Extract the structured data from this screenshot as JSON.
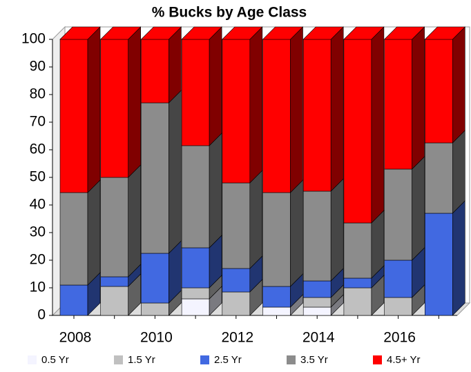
{
  "chart_data": {
    "type": "bar3d_stacked",
    "title": "% Bucks by Age Class",
    "categories": [
      "2008",
      null,
      "2010",
      null,
      "2012",
      null,
      "2014",
      null,
      "2016",
      null
    ],
    "series": [
      {
        "name": "0.5 Yr",
        "color": "#f4f4ff",
        "values": [
          0,
          0,
          0,
          6,
          0,
          3,
          3,
          0,
          0,
          0
        ]
      },
      {
        "name": "1.5 Yr",
        "color": "#c0c0c0",
        "values": [
          0,
          10.5,
          4.5,
          4,
          8.5,
          0,
          3.5,
          10,
          6.5,
          0
        ]
      },
      {
        "name": "2.5 Yr",
        "color": "#4169e1",
        "values": [
          11,
          3.5,
          18,
          14.5,
          8.5,
          7.5,
          6,
          3.5,
          13.5,
          37
        ]
      },
      {
        "name": "3.5 Yr",
        "color": "#8c8c8c",
        "values": [
          33.5,
          36,
          54.5,
          37,
          31,
          34,
          32.5,
          20,
          33,
          25.5
        ]
      },
      {
        "name": "4.5+ Yr",
        "color": "#ff0000",
        "values": [
          55.5,
          50,
          23,
          38.5,
          52,
          55.5,
          55,
          66.5,
          47,
          37.5
        ]
      }
    ],
    "ylim": [
      0,
      100
    ],
    "yticks": [
      0,
      10,
      20,
      30,
      40,
      50,
      60,
      70,
      80,
      90,
      100
    ]
  }
}
